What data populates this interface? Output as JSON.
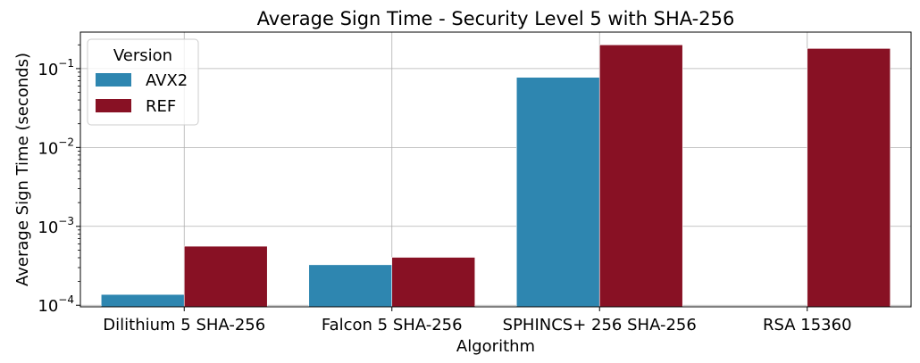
{
  "chart_data": {
    "type": "bar",
    "title": "Average Sign Time - Security Level 5 with SHA-256",
    "xlabel": "Algorithm",
    "ylabel": "Average Sign Time (seconds)",
    "yscale": "log",
    "ylim": [
      9.55e-05,
      0.29
    ],
    "grid": true,
    "legend_title": "Version",
    "legend_position": "top-left",
    "categories": [
      "Dilithium 5 SHA-256",
      "Falcon 5 SHA-256",
      "SPHINCS+ 256 SHA-256",
      "RSA 15360"
    ],
    "yticks": [
      {
        "value": 0.0001,
        "base": "10",
        "exp": "−4"
      },
      {
        "value": 0.001,
        "base": "10",
        "exp": "−3"
      },
      {
        "value": 0.01,
        "base": "10",
        "exp": "−2"
      },
      {
        "value": 0.1,
        "base": "10",
        "exp": "−1"
      }
    ],
    "series": [
      {
        "name": "AVX2",
        "color": "#2e86b0",
        "values": [
          0.000137,
          0.000326,
          0.0775,
          null
        ]
      },
      {
        "name": "REF",
        "color": "#881124",
        "values": [
          0.00056,
          0.000405,
          0.2,
          0.18
        ]
      }
    ]
  }
}
